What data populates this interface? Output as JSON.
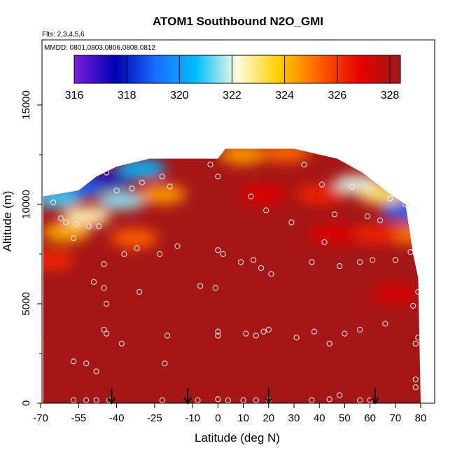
{
  "chart_data": {
    "type": "heatmap",
    "title": "ATOM1 Southbound N2O_GMI",
    "xlabel": "Latitude (deg N)",
    "ylabel": "Altitude (m)",
    "flights_note": "Flts: 2,3,4,5,6",
    "dates_note": "MMDD: 0801,0803,0806,0808,0812",
    "xlim": [
      -70,
      84
    ],
    "ylim": [
      0,
      17500
    ],
    "x_ticks": [
      -70,
      -55,
      -40,
      -25,
      -10,
      0,
      10,
      20,
      30,
      40,
      50,
      60,
      70,
      80
    ],
    "x_tick_labels": [
      "-70",
      "-55",
      "-40",
      "-25",
      "-10",
      "0",
      "10",
      "20",
      "30",
      "40",
      "50",
      "60",
      "70",
      "80"
    ],
    "y_ticks": [
      0,
      5000,
      10000,
      15000
    ],
    "y_tick_labels": [
      "0",
      "5000",
      "10000",
      "15000"
    ],
    "colorbar": {
      "min": 316,
      "max": 328.4,
      "ticks": [
        316,
        318,
        320,
        322,
        324,
        326,
        328
      ],
      "tick_labels": [
        "316",
        "318",
        "320",
        "322",
        "324",
        "326",
        "328"
      ],
      "colors": [
        "#7b1fe0",
        "#0000b0",
        "#1a6cff",
        "#00c0ff",
        "#fffbe0",
        "#ffd000",
        "#ff6000",
        "#e80000",
        "#a01818"
      ]
    },
    "background_value": 328.3,
    "top_profile": [
      {
        "lat": -69,
        "alt": 10400
      },
      {
        "lat": -55,
        "alt": 10700
      },
      {
        "lat": -48,
        "alt": 11400
      },
      {
        "lat": -40,
        "alt": 11900
      },
      {
        "lat": -27,
        "alt": 12300
      },
      {
        "lat": -10,
        "alt": 12300
      },
      {
        "lat": 0,
        "alt": 12300
      },
      {
        "lat": 3,
        "alt": 12800
      },
      {
        "lat": 20,
        "alt": 12800
      },
      {
        "lat": 30,
        "alt": 12800
      },
      {
        "lat": 47,
        "alt": 12300
      },
      {
        "lat": 57,
        "alt": 11600
      },
      {
        "lat": 67,
        "alt": 10600
      },
      {
        "lat": 74,
        "alt": 10000
      },
      {
        "lat": 77,
        "alt": 7500
      },
      {
        "lat": 79,
        "alt": 6300
      },
      {
        "lat": 80,
        "alt": 0
      }
    ],
    "low_features": [
      {
        "lat": -43,
        "alt": 11250,
        "value": 317.2
      },
      {
        "lat": -55,
        "alt": 10800,
        "value": 319
      },
      {
        "lat": -64,
        "alt": 10300,
        "value": 321
      },
      {
        "lat": -30,
        "alt": 11800,
        "value": 320.5
      },
      {
        "lat": -38,
        "alt": 10200,
        "value": 321.5
      },
      {
        "lat": -52,
        "alt": 9400,
        "value": 322.5
      },
      {
        "lat": -60,
        "alt": 8600,
        "value": 324.2
      },
      {
        "lat": -33,
        "alt": 8300,
        "value": 325.3
      },
      {
        "lat": -66,
        "alt": 7200,
        "value": 326.2
      },
      {
        "lat": -22,
        "alt": 10500,
        "value": 324.5
      },
      {
        "lat": 10,
        "alt": 12500,
        "value": 324.5
      },
      {
        "lat": 27,
        "alt": 12600,
        "value": 325.2
      },
      {
        "lat": 55,
        "alt": 11000,
        "value": 322
      },
      {
        "lat": 65,
        "alt": 10500,
        "value": 323
      },
      {
        "lat": 74,
        "alt": 9700,
        "value": 319
      },
      {
        "lat": 75,
        "alt": 8500,
        "value": 325
      },
      {
        "lat": 62,
        "alt": 8500,
        "value": 326.3
      },
      {
        "lat": 45,
        "alt": 8500,
        "value": 327
      },
      {
        "lat": 40,
        "alt": 10500,
        "value": 326.3
      },
      {
        "lat": 18,
        "alt": 10500,
        "value": 327
      },
      {
        "lat": 70,
        "alt": 5500,
        "value": 327.2
      }
    ],
    "observations": [
      {
        "lat": -65,
        "alt": 10100
      },
      {
        "lat": -62,
        "alt": 9300
      },
      {
        "lat": -60,
        "alt": 9100
      },
      {
        "lat": -56,
        "alt": 9000
      },
      {
        "lat": -51,
        "alt": 8900
      },
      {
        "lat": -47,
        "alt": 8900
      },
      {
        "lat": -57,
        "alt": 8300
      },
      {
        "lat": -44,
        "alt": 11600
      },
      {
        "lat": -40,
        "alt": 10700
      },
      {
        "lat": -34,
        "alt": 10800
      },
      {
        "lat": -30,
        "alt": 11100
      },
      {
        "lat": -22,
        "alt": 11400
      },
      {
        "lat": -19,
        "alt": 10900
      },
      {
        "lat": -3,
        "alt": 12000
      },
      {
        "lat": 0,
        "alt": 11400
      },
      {
        "lat": 13,
        "alt": 10400
      },
      {
        "lat": 19,
        "alt": 9700
      },
      {
        "lat": 29,
        "alt": 9100
      },
      {
        "lat": 34,
        "alt": 12000
      },
      {
        "lat": 41,
        "alt": 11000
      },
      {
        "lat": 46,
        "alt": 9500
      },
      {
        "lat": 53,
        "alt": 10900
      },
      {
        "lat": 59,
        "alt": 9400
      },
      {
        "lat": 64,
        "alt": 9200
      },
      {
        "lat": 68,
        "alt": 10300
      },
      {
        "lat": 74,
        "alt": 10000
      },
      {
        "lat": 78,
        "alt": 9700
      },
      {
        "lat": -37,
        "alt": 7500
      },
      {
        "lat": -32,
        "alt": 7800
      },
      {
        "lat": -23,
        "alt": 7500
      },
      {
        "lat": -16,
        "alt": 7900
      },
      {
        "lat": 0,
        "alt": 7700
      },
      {
        "lat": 2,
        "alt": 7500
      },
      {
        "lat": 9,
        "alt": 7100
      },
      {
        "lat": 14,
        "alt": 7200
      },
      {
        "lat": 17,
        "alt": 6800
      },
      {
        "lat": 21,
        "alt": 6500
      },
      {
        "lat": 37,
        "alt": 7100
      },
      {
        "lat": 42,
        "alt": 8100
      },
      {
        "lat": 48,
        "alt": 6900
      },
      {
        "lat": 56,
        "alt": 7100
      },
      {
        "lat": 61,
        "alt": 7200
      },
      {
        "lat": 70,
        "alt": 7200
      },
      {
        "lat": 76,
        "alt": 7600
      },
      {
        "lat": -45,
        "alt": 7000
      },
      {
        "lat": -49,
        "alt": 6100
      },
      {
        "lat": -45,
        "alt": 5800
      },
      {
        "lat": -31,
        "alt": 5600
      },
      {
        "lat": -7,
        "alt": 5900
      },
      {
        "lat": -1,
        "alt": 5800
      },
      {
        "lat": 79,
        "alt": 5600
      },
      {
        "lat": -44,
        "alt": 5000
      },
      {
        "lat": -45,
        "alt": 3700
      },
      {
        "lat": -44,
        "alt": 3500
      },
      {
        "lat": 0,
        "alt": 3600
      },
      {
        "lat": 0,
        "alt": 3400
      },
      {
        "lat": 11,
        "alt": 3500
      },
      {
        "lat": 15,
        "alt": 3400
      },
      {
        "lat": 18,
        "alt": 3600
      },
      {
        "lat": 20,
        "alt": 3700
      },
      {
        "lat": 31,
        "alt": 3300
      },
      {
        "lat": 38,
        "alt": 3600
      },
      {
        "lat": 50,
        "alt": 3500
      },
      {
        "lat": 56,
        "alt": 3700
      },
      {
        "lat": 66,
        "alt": 4000
      },
      {
        "lat": -70,
        "alt": 3000
      },
      {
        "lat": -38,
        "alt": 3000
      },
      {
        "lat": -20,
        "alt": 3400
      },
      {
        "lat": 44,
        "alt": 3000
      },
      {
        "lat": 79,
        "alt": 3300
      },
      {
        "lat": 78,
        "alt": 3000
      },
      {
        "lat": 77,
        "alt": 4900
      },
      {
        "lat": -57,
        "alt": 2100
      },
      {
        "lat": -52,
        "alt": 2000
      },
      {
        "lat": -48,
        "alt": 1600
      },
      {
        "lat": -21,
        "alt": 2000
      },
      {
        "lat": 78,
        "alt": 1200
      },
      {
        "lat": 78,
        "alt": 800
      },
      {
        "lat": -70,
        "alt": 200
      },
      {
        "lat": -57,
        "alt": 150
      },
      {
        "lat": -52,
        "alt": 150
      },
      {
        "lat": -48,
        "alt": 150
      },
      {
        "lat": -43,
        "alt": 150
      },
      {
        "lat": -22,
        "alt": 150
      },
      {
        "lat": -8,
        "alt": 150
      },
      {
        "lat": 0,
        "alt": 200
      },
      {
        "lat": 4,
        "alt": 150
      },
      {
        "lat": 10,
        "alt": 150
      },
      {
        "lat": 15,
        "alt": 150
      },
      {
        "lat": 20,
        "alt": 150
      },
      {
        "lat": 37,
        "alt": 150
      },
      {
        "lat": 44,
        "alt": 200
      },
      {
        "lat": 48,
        "alt": 400
      },
      {
        "lat": 56,
        "alt": 150
      },
      {
        "lat": 60,
        "alt": 150
      }
    ],
    "arrows": [
      -42,
      -12,
      20,
      62
    ]
  }
}
